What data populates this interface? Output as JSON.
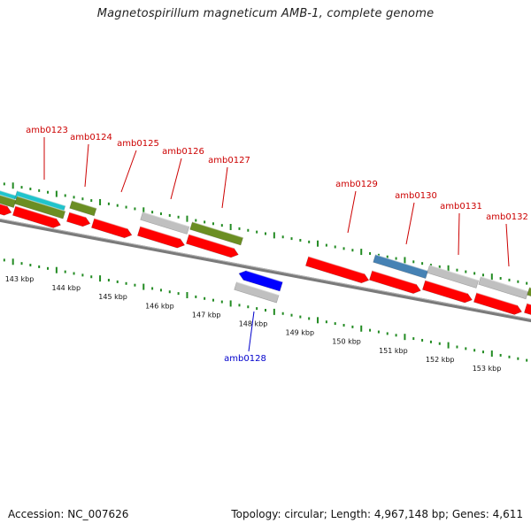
{
  "title": "Magnetospirillum magneticum AMB-1, complete genome",
  "footer": {
    "accession": "Accession: NC_007626",
    "summary": "Topology: circular; Length: 4,967,148 bp; Genes: 4,611"
  },
  "colors": {
    "forward_gene": "#ff0000",
    "reverse_gene": "#0000ff",
    "label_forward": "#cc0000",
    "label_reverse": "#0000cc",
    "tick": "#228b22",
    "backbone": "#888888",
    "cyan_block": "#20c4cc",
    "olive_block": "#6b8e23",
    "gray_block": "#c0c0c0",
    "steel_block": "#4682b4"
  },
  "ruler": {
    "unit": "kbp",
    "ticks": [
      {
        "kbp": 143,
        "label": "143 kbp"
      },
      {
        "kbp": 144,
        "label": "144 kbp"
      },
      {
        "kbp": 145,
        "label": "145 kbp"
      },
      {
        "kbp": 146,
        "label": "146 kbp"
      },
      {
        "kbp": 147,
        "label": "147 kbp"
      },
      {
        "kbp": 148,
        "label": "148 kbp"
      },
      {
        "kbp": 149,
        "label": "149 kbp"
      },
      {
        "kbp": 150,
        "label": "150 kbp"
      },
      {
        "kbp": 151,
        "label": "151 kbp"
      },
      {
        "kbp": 152,
        "label": "152 kbp"
      },
      {
        "kbp": 153,
        "label": "153 kbp"
      }
    ]
  },
  "gene_labels": [
    {
      "name": "amb0123",
      "strand": "forward"
    },
    {
      "name": "amb0124",
      "strand": "forward"
    },
    {
      "name": "amb0125",
      "strand": "forward"
    },
    {
      "name": "amb0126",
      "strand": "forward"
    },
    {
      "name": "amb0127",
      "strand": "forward"
    },
    {
      "name": "amb0129",
      "strand": "forward"
    },
    {
      "name": "amb0130",
      "strand": "forward"
    },
    {
      "name": "amb0131",
      "strand": "forward"
    },
    {
      "name": "amb0132",
      "strand": "forward"
    },
    {
      "name": "amb0128",
      "strand": "reverse"
    }
  ]
}
